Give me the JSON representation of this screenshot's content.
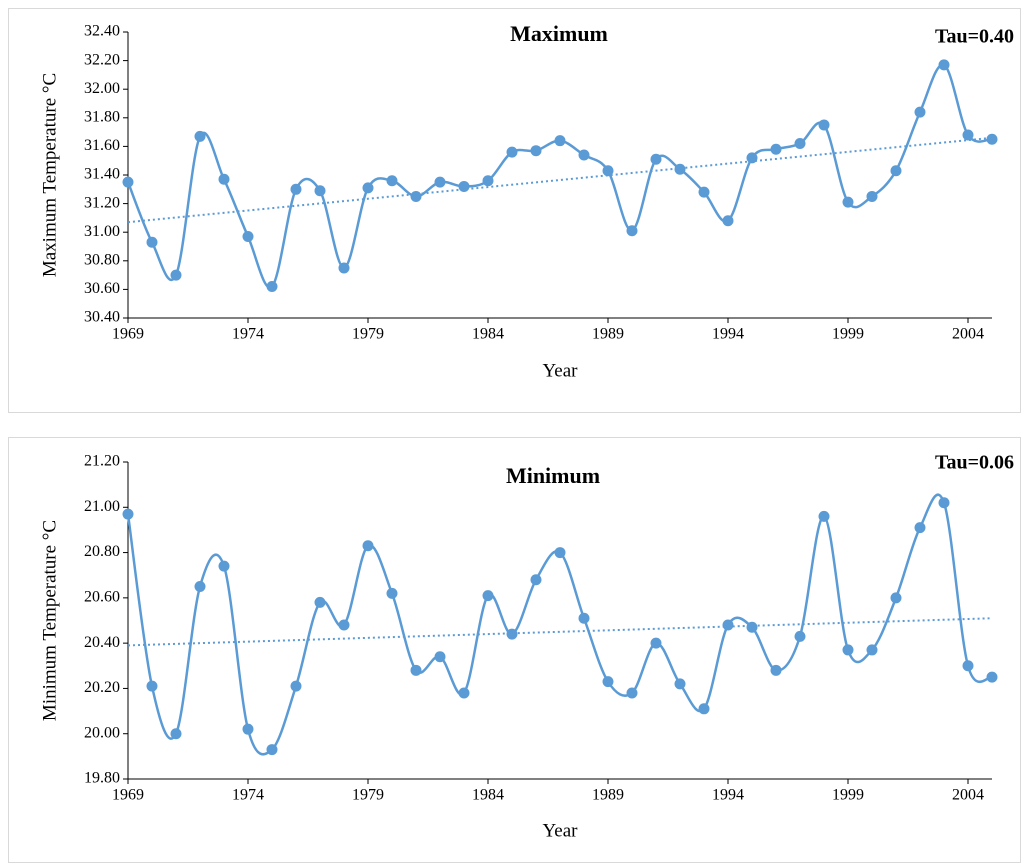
{
  "chart_data": [
    {
      "type": "line",
      "title": "Maximum",
      "annotation": "Tau=0.40",
      "xlabel": "Year",
      "ylabel": "Maximum Temperature  °C",
      "x": [
        1969,
        1970,
        1971,
        1972,
        1973,
        1974,
        1975,
        1976,
        1977,
        1978,
        1979,
        1980,
        1981,
        1982,
        1983,
        1984,
        1985,
        1986,
        1987,
        1988,
        1989,
        1990,
        1991,
        1992,
        1993,
        1994,
        1995,
        1996,
        1997,
        1998,
        1999,
        2000,
        2001,
        2002,
        2003,
        2004,
        2005
      ],
      "series": [
        {
          "color": "#5b9bd5",
          "values": [
            31.35,
            30.93,
            30.7,
            31.67,
            31.37,
            30.97,
            30.62,
            31.3,
            31.29,
            30.75,
            31.31,
            31.36,
            31.25,
            31.35,
            31.32,
            31.36,
            31.56,
            31.57,
            31.64,
            31.54,
            31.43,
            31.01,
            31.51,
            31.44,
            31.28,
            31.08,
            31.52,
            31.58,
            31.62,
            31.75,
            31.21,
            31.25,
            31.43,
            31.84,
            32.17,
            31.68,
            31.65
          ]
        }
      ],
      "trendline": {
        "x": [
          1969,
          2005
        ],
        "values": [
          31.07,
          31.66
        ]
      },
      "xlim": [
        1969,
        2005
      ],
      "xticks": [
        1969,
        1974,
        1979,
        1984,
        1989,
        1994,
        1999,
        2004
      ],
      "ylim": [
        30.4,
        32.4
      ],
      "yticks": [
        {
          "value": 30.4,
          "label": "30.40"
        },
        {
          "value": 30.6,
          "label": "30.60"
        },
        {
          "value": 30.8,
          "label": "30.80"
        },
        {
          "value": 31.0,
          "label": "31.00"
        },
        {
          "value": 31.2,
          "label": "31.20"
        },
        {
          "value": 31.4,
          "label": "31.40"
        },
        {
          "value": 31.6,
          "label": "31.60"
        },
        {
          "value": 31.8,
          "label": "31.80"
        },
        {
          "value": 32.0,
          "label": "32.00"
        },
        {
          "value": 32.2,
          "label": "32.20"
        },
        {
          "value": 32.4,
          "label": "32.40"
        }
      ]
    },
    {
      "type": "line",
      "title": "Minimum",
      "annotation": "Tau=0.06",
      "xlabel": "Year",
      "ylabel": "Minimum Temperature  °C",
      "x": [
        1969,
        1970,
        1971,
        1972,
        1973,
        1974,
        1975,
        1976,
        1977,
        1978,
        1979,
        1980,
        1981,
        1982,
        1983,
        1984,
        1985,
        1986,
        1987,
        1988,
        1989,
        1990,
        1991,
        1992,
        1993,
        1994,
        1995,
        1996,
        1997,
        1998,
        1999,
        2000,
        2001,
        2002,
        2003,
        2004,
        2005
      ],
      "series": [
        {
          "color": "#5b9bd5",
          "values": [
            20.97,
            20.21,
            20.0,
            20.65,
            20.74,
            20.02,
            19.93,
            20.21,
            20.58,
            20.48,
            20.83,
            20.62,
            20.28,
            20.34,
            20.18,
            20.61,
            20.44,
            20.68,
            20.8,
            20.51,
            20.23,
            20.18,
            20.4,
            20.22,
            20.11,
            20.48,
            20.47,
            20.28,
            20.43,
            20.96,
            20.37,
            20.37,
            20.6,
            20.91,
            21.02,
            20.3,
            20.25
          ]
        }
      ],
      "trendline": {
        "x": [
          1969,
          2005
        ],
        "values": [
          20.39,
          20.51
        ]
      },
      "xlim": [
        1969,
        2005
      ],
      "xticks": [
        1969,
        1974,
        1979,
        1984,
        1989,
        1994,
        1999,
        2004
      ],
      "ylim": [
        19.8,
        21.2
      ],
      "yticks": [
        {
          "value": 19.8,
          "label": "19.80"
        },
        {
          "value": 20.0,
          "label": "20.00"
        },
        {
          "value": 20.2,
          "label": "20.20"
        },
        {
          "value": 20.4,
          "label": "20.40"
        },
        {
          "value": 20.6,
          "label": "20.60"
        },
        {
          "value": 20.8,
          "label": "20.80"
        },
        {
          "value": 21.0,
          "label": "21.00"
        },
        {
          "value": 21.2,
          "label": "21.20"
        }
      ]
    }
  ]
}
